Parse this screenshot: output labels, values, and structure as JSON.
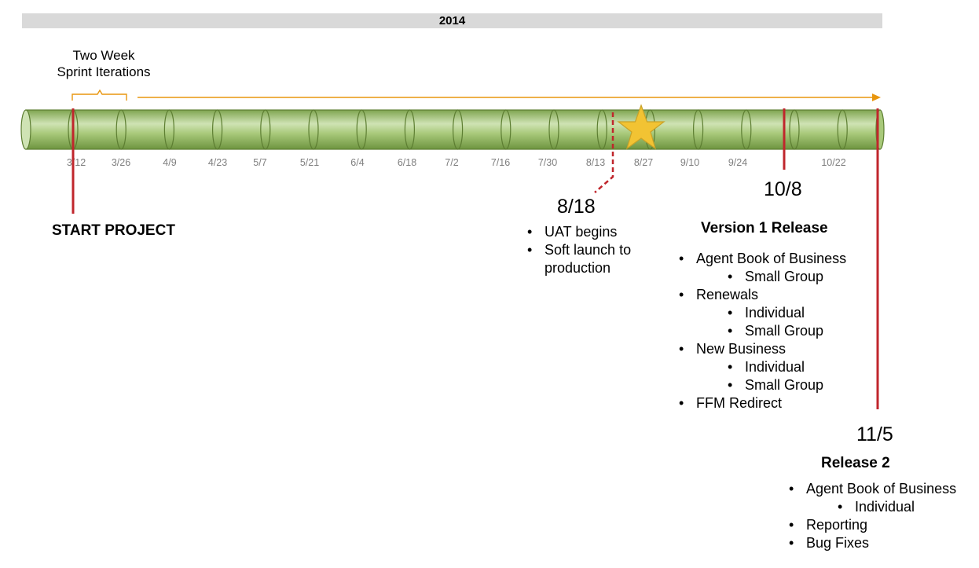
{
  "year_label": "2014",
  "sprint_label_line1": "Two Week",
  "sprint_label_line2": "Sprint Iterations",
  "ticks": [
    "3/12",
    "3/26",
    "4/9",
    "4/23",
    "5/7",
    "5/21",
    "6/4",
    "6/18",
    "7/2",
    "7/16",
    "7/30",
    "8/13",
    "8/27",
    "9/10",
    "9/24",
    "10/22"
  ],
  "colors": {
    "pipe": "#a8c97a",
    "pipe_edge": "#5d7e32",
    "marker": "#c0262c",
    "arrow": "#e8960e",
    "star": "#f2c333",
    "tick_text": "#7f7f7f"
  },
  "milestones": {
    "start": {
      "title": "START PROJECT"
    },
    "uat": {
      "date": "8/18",
      "items": [
        "UAT begins",
        "Soft launch to production"
      ]
    },
    "v1": {
      "date": "10/8",
      "title": "Version 1 Release",
      "items": [
        {
          "label": "Agent Book of Business",
          "level": 0
        },
        {
          "label": "Small Group",
          "level": 1
        },
        {
          "label": "Renewals",
          "level": 0
        },
        {
          "label": "Individual",
          "level": 1
        },
        {
          "label": "Small Group",
          "level": 1
        },
        {
          "label": "New Business",
          "level": 0
        },
        {
          "label": "Individual",
          "level": 1
        },
        {
          "label": "Small Group",
          "level": 1
        },
        {
          "label": "FFM Redirect",
          "level": 0
        }
      ]
    },
    "r2": {
      "date": "11/5",
      "title": "Release 2",
      "items": [
        {
          "label": "Agent Book of Business",
          "level": 0
        },
        {
          "label": "Individual",
          "level": 1
        },
        {
          "label": "Reporting",
          "level": 0
        },
        {
          "label": "Bug Fixes",
          "level": 0
        }
      ]
    }
  }
}
